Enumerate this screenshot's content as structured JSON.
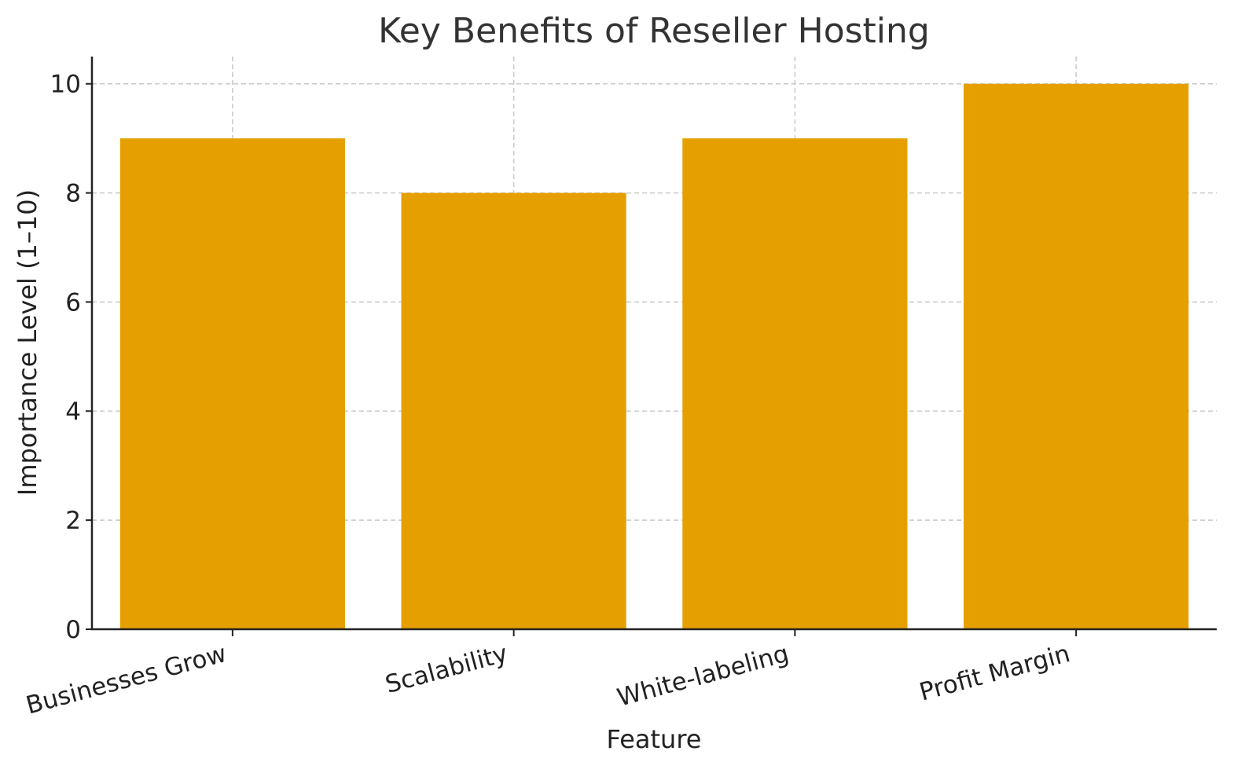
{
  "chart_data": {
    "type": "bar",
    "title": "Key Benefits of Reseller Hosting",
    "xlabel": "Feature",
    "ylabel": "Importance Level (1–10)",
    "categories": [
      "Businesses Grow",
      "Scalability",
      "White-labeling",
      "Profit Margin"
    ],
    "values": [
      9,
      8,
      9,
      10
    ],
    "ylim": [
      0,
      10.5
    ],
    "yticks": [
      0,
      2,
      4,
      6,
      8,
      10
    ],
    "grid": true,
    "bar_color": "#E5A000"
  }
}
